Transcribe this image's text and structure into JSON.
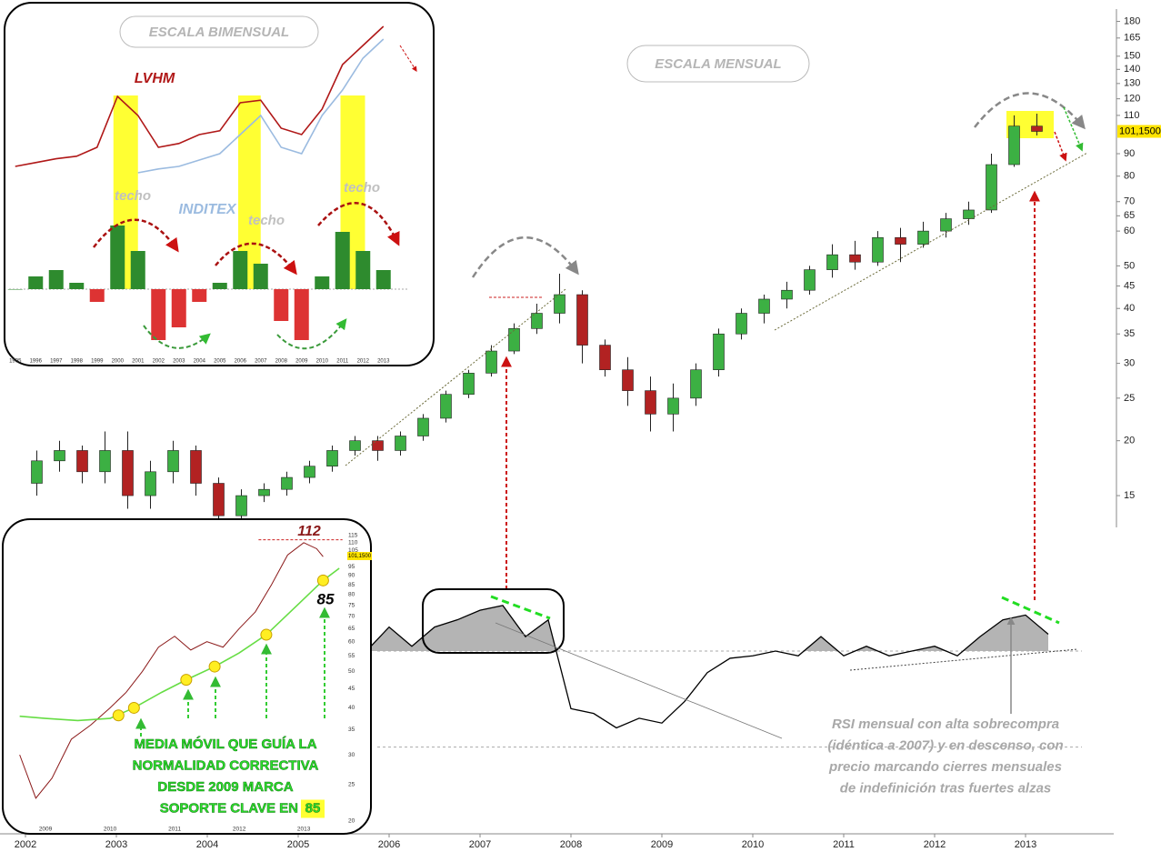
{
  "chart_data": [
    {
      "type": "candlestick",
      "title": "ESCALA MENSUAL",
      "x": [
        2002.125,
        2002.375,
        2002.625,
        2002.875,
        2003.125,
        2003.375,
        2003.625,
        2003.875,
        2004.125,
        2004.375,
        2004.625,
        2004.875,
        2005.125,
        2005.375,
        2005.625,
        2005.875,
        2006.125,
        2006.375,
        2006.625,
        2006.875,
        2007.125,
        2007.375,
        2007.625,
        2007.875,
        2008.125,
        2008.375,
        2008.625,
        2008.875,
        2009.125,
        2009.375,
        2009.625,
        2009.875,
        2010.125,
        2010.375,
        2010.625,
        2010.875,
        2011.125,
        2011.375,
        2011.625,
        2011.875,
        2012.125,
        2012.375,
        2012.625,
        2012.875,
        2013.125
      ],
      "open": [
        16,
        18,
        19,
        17,
        19,
        15,
        17,
        19,
        16,
        13.5,
        15,
        15.5,
        16.5,
        17.5,
        19,
        20,
        19,
        20.5,
        22.5,
        25.5,
        28.5,
        32,
        36,
        39,
        43,
        33,
        29,
        26,
        23,
        25,
        29,
        35,
        39,
        42,
        44,
        49,
        53,
        51,
        58,
        56,
        60,
        64,
        67,
        85,
        104
      ],
      "high": [
        19,
        20,
        19.5,
        21,
        21,
        18,
        20,
        19.5,
        16.5,
        15.5,
        16,
        17,
        18,
        19.5,
        20.5,
        20.5,
        21,
        23,
        26,
        29,
        33,
        37,
        41,
        48,
        44,
        34,
        31,
        28,
        27,
        30,
        36,
        40,
        43,
        46,
        50,
        56,
        57,
        60,
        61,
        63,
        66,
        70,
        90,
        110,
        111
      ],
      "low": [
        15,
        17,
        16,
        16,
        14,
        14,
        16,
        15,
        13,
        13,
        14.5,
        15,
        16,
        17,
        18.5,
        18,
        18.5,
        20,
        22,
        25,
        28,
        31.5,
        35,
        37,
        30,
        28,
        24,
        21,
        21,
        24,
        28,
        34,
        37,
        40,
        43,
        47,
        49,
        50,
        51,
        55,
        58,
        62,
        66,
        84,
        99
      ],
      "close": [
        18,
        19,
        17,
        19,
        15,
        17,
        19,
        16,
        13.5,
        15,
        15.5,
        16.5,
        17.5,
        19,
        20,
        19,
        20.5,
        22.5,
        25.5,
        28.5,
        32,
        36,
        39,
        43,
        33,
        29,
        26,
        23,
        25,
        29,
        35,
        39,
        42,
        44,
        49,
        53,
        51,
        58,
        56,
        60,
        64,
        67,
        85,
        104,
        101.15
      ],
      "last_label": "101,1500",
      "up_color": "#3cb043",
      "down_color": "#b22222",
      "log_scale": true,
      "xlim": [
        2001.72,
        2013.98
      ],
      "xticks": [
        2002,
        2003,
        2004,
        2005,
        2006,
        2007,
        2008,
        2009,
        2010,
        2011,
        2012,
        2013
      ],
      "ylim": [
        12.7,
        192
      ],
      "yticks": [
        15,
        20,
        25,
        30,
        35,
        40,
        45,
        50,
        60,
        65,
        70,
        80,
        90,
        110,
        120,
        130,
        140,
        150,
        165,
        180
      ]
    },
    {
      "type": "line",
      "color": "#000000",
      "x": [
        2005.75,
        2006,
        2006.25,
        2006.5,
        2006.75,
        2007,
        2007.25,
        2007.5,
        2007.75,
        2008,
        2008.25,
        2008.5,
        2008.75,
        2009,
        2009.25,
        2009.5,
        2009.75,
        2010,
        2010.25,
        2010.5,
        2010.75,
        2011,
        2011.25,
        2011.5,
        2011.75,
        2012,
        2012.25,
        2012.5,
        2012.75,
        2013,
        2013.25
      ],
      "values": [
        70,
        80,
        72,
        80,
        83,
        87,
        89,
        76,
        83,
        46,
        44,
        38,
        42,
        40,
        49,
        61,
        67,
        68,
        70,
        68,
        76,
        68,
        72,
        68,
        70,
        72,
        68,
        76,
        83,
        85,
        77
      ],
      "ylim": [
        20,
        95
      ],
      "levels": [
        70,
        30
      ],
      "fill_color": "#b4b4b4",
      "annotation": [
        "RSI mensual con alta sobrecompra",
        "(idéntica a 2007) y en descenso, con",
        "precio marcando cierres mensuales",
        "de indefinición tras fuertes alzas"
      ]
    },
    {
      "type": "line",
      "title": "ESCALA BIMENSUAL",
      "x": [
        1995,
        1996,
        1997,
        1998,
        1999,
        2000,
        2001,
        2002,
        2003,
        2004,
        2005,
        2006,
        2007,
        2008,
        2009,
        2010,
        2011,
        2012,
        2013
      ],
      "xlim": [
        1994.7,
        2013.9
      ],
      "ylim": [
        0,
        150
      ],
      "series": [
        {
          "name": "LVHM",
          "color": "#b01818",
          "x": [
            1995,
            1996,
            1997,
            1998,
            1999,
            2000,
            2001,
            2002,
            2003,
            2004,
            2005,
            2006,
            2007,
            2008,
            2009,
            2010,
            2011,
            2012,
            2013
          ],
          "values": [
            30,
            33,
            36,
            38,
            45,
            85,
            70,
            45,
            48,
            55,
            58,
            80,
            82,
            60,
            55,
            75,
            110,
            125,
            140
          ]
        },
        {
          "name": "INDITEX",
          "color": "#9bbbe0",
          "x": [
            2001,
            2002,
            2003,
            2004,
            2005,
            2006,
            2007,
            2008,
            2009,
            2010,
            2011,
            2012,
            2013
          ],
          "values": [
            25,
            28,
            30,
            35,
            40,
            55,
            70,
            45,
            40,
            70,
            90,
            115,
            130
          ]
        }
      ],
      "histogram": {
        "values": [
          0,
          2,
          3,
          1,
          -2,
          10,
          6,
          -8,
          -6,
          -2,
          1,
          6,
          4,
          -5,
          -8,
          2,
          9,
          6,
          3
        ],
        "pos_color": "#2e8b2e",
        "neg_color": "#dd3333"
      },
      "hist_ylim": [
        -10,
        10
      ],
      "bands": [
        [
          1999.8,
          2001.0
        ],
        [
          2005.9,
          2007.0
        ],
        [
          2010.9,
          2012.1
        ]
      ],
      "band_color": "#ffff33",
      "annotations": [
        "techo",
        "techo",
        "techo"
      ]
    },
    {
      "type": "line",
      "xlim": [
        2008.45,
        2013.9
      ],
      "xticks": [
        2009,
        2010,
        2011,
        2012,
        2013
      ],
      "ylim": [
        18.7,
        120.8
      ],
      "log_scale": true,
      "yticks": [
        20,
        25,
        30,
        35,
        40,
        45,
        50,
        55,
        60,
        65,
        70,
        75,
        80,
        85,
        90,
        95,
        100,
        105,
        110,
        115
      ],
      "series": [
        {
          "color": "#8b1a1a",
          "x": [
            2008.6,
            2008.85,
            2009.1,
            2009.4,
            2009.7,
            2010.0,
            2010.25,
            2010.5,
            2010.75,
            2011.0,
            2011.25,
            2011.5,
            2011.75,
            2012.0,
            2012.25,
            2012.5,
            2012.75,
            2013.0,
            2013.2,
            2013.3
          ],
          "values": [
            30,
            23,
            26,
            33,
            36,
            40,
            44,
            50,
            58,
            62,
            57,
            60,
            58,
            65,
            72,
            85,
            102,
            110,
            106,
            101
          ]
        },
        {
          "color": "#66dd44",
          "x": [
            2008.6,
            2009.0,
            2009.5,
            2010.0,
            2010.37,
            2010.8,
            2011.18,
            2011.62,
            2012.0,
            2012.42,
            2012.9,
            2013.3,
            2013.55
          ],
          "values": [
            38,
            37.5,
            37,
            37.5,
            40,
            44,
            47.5,
            51.5,
            56,
            62.6,
            75,
            87.3,
            94
          ]
        }
      ],
      "dots": {
        "x": [
          2010.13,
          2010.37,
          2011.18,
          2011.62,
          2012.42,
          2013.3
        ],
        "values": [
          38.2,
          40,
          47.5,
          51.5,
          62.6,
          87.3
        ],
        "color": "#ffee22"
      },
      "resistance": 112,
      "support": 85,
      "text": [
        "MEDIA MÓVIL QUE GUÍA LA",
        "NORMALIDAD CORRECTIVA",
        "DESDE 2009 MARCA",
        "SOPORTE CLAVE EN"
      ]
    }
  ]
}
